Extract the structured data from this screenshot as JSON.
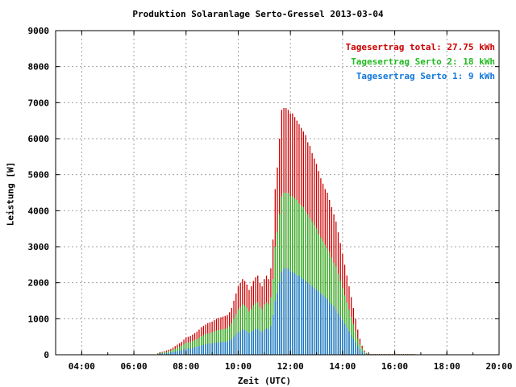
{
  "chart_data": {
    "type": "bar",
    "title": "Produktion Solaranlage Serto-Gressel 2013-03-04",
    "xlabel": "Zeit (UTC)",
    "ylabel": "Leistung [W]",
    "x_ticks": [
      "04:00",
      "06:00",
      "08:00",
      "10:00",
      "12:00",
      "14:00",
      "16:00",
      "18:00",
      "20:00"
    ],
    "y_ticks": [
      "0",
      "1000",
      "2000",
      "3000",
      "4000",
      "5000",
      "6000",
      "7000",
      "8000",
      "9000"
    ],
    "xlim": [
      "03:00",
      "20:00"
    ],
    "ylim": [
      0,
      9000
    ],
    "grid": true,
    "legend_position": "top-right",
    "stacked": true,
    "interval_minutes": 5,
    "series": [
      {
        "name": "Tagesertrag total: 27.75 kWh",
        "color": "#cc0000"
      },
      {
        "name": "Tagesertrag Serto 2: 18 kWh",
        "color": "#22bb22"
      },
      {
        "name": "Tagesertrag Serto 1: 9 kWh",
        "color": "#1177dd"
      }
    ],
    "x": [
      "06:55",
      "07:00",
      "07:05",
      "07:10",
      "07:15",
      "07:20",
      "07:25",
      "07:30",
      "07:35",
      "07:40",
      "07:45",
      "07:50",
      "07:55",
      "08:00",
      "08:05",
      "08:10",
      "08:15",
      "08:20",
      "08:25",
      "08:30",
      "08:35",
      "08:40",
      "08:45",
      "08:50",
      "08:55",
      "09:00",
      "09:05",
      "09:10",
      "09:15",
      "09:20",
      "09:25",
      "09:30",
      "09:35",
      "09:40",
      "09:45",
      "09:50",
      "09:55",
      "10:00",
      "10:05",
      "10:10",
      "10:15",
      "10:20",
      "10:25",
      "10:30",
      "10:35",
      "10:40",
      "10:45",
      "10:50",
      "10:55",
      "11:00",
      "11:05",
      "11:10",
      "11:15",
      "11:20",
      "11:25",
      "11:30",
      "11:35",
      "11:40",
      "11:45",
      "11:50",
      "11:55",
      "12:00",
      "12:05",
      "12:10",
      "12:15",
      "12:20",
      "12:25",
      "12:30",
      "12:35",
      "12:40",
      "12:45",
      "12:50",
      "12:55",
      "13:00",
      "13:05",
      "13:10",
      "13:15",
      "13:20",
      "13:25",
      "13:30",
      "13:35",
      "13:40",
      "13:45",
      "13:50",
      "13:55",
      "14:00",
      "14:05",
      "14:10",
      "14:15",
      "14:20",
      "14:25",
      "14:30",
      "14:35",
      "14:40",
      "14:45",
      "14:50",
      "14:55",
      "15:00",
      "15:05",
      "15:10",
      "15:15",
      "15:20",
      "15:25",
      "15:30",
      "15:35",
      "15:40",
      "15:45",
      "15:50",
      "15:55",
      "16:00",
      "16:05",
      "16:10",
      "16:15",
      "16:20",
      "16:25",
      "16:30",
      "16:35",
      "16:40",
      "16:45",
      "16:50",
      "16:55",
      "17:00"
    ],
    "total": [
      40,
      60,
      80,
      100,
      120,
      140,
      160,
      200,
      240,
      280,
      320,
      360,
      420,
      480,
      500,
      520,
      560,
      600,
      640,
      700,
      760,
      800,
      840,
      880,
      900,
      920,
      960,
      1000,
      1020,
      1040,
      1060,
      1080,
      1100,
      1180,
      1300,
      1500,
      1700,
      1900,
      2000,
      2100,
      2050,
      1950,
      1800,
      1900,
      2050,
      2150,
      2200,
      2000,
      1900,
      2100,
      2200,
      2100,
      2400,
      3200,
      4600,
      5200,
      6000,
      6800,
      6850,
      6850,
      6800,
      6700,
      6700,
      6600,
      6500,
      6400,
      6300,
      6200,
      6100,
      5900,
      5800,
      5600,
      5450,
      5300,
      5100,
      4900,
      4750,
      4600,
      4500,
      4300,
      4100,
      3900,
      3700,
      3400,
      3100,
      2800,
      2500,
      2200,
      1900,
      1600,
      1300,
      1000,
      700,
      450,
      250,
      120,
      50,
      20,
      20,
      20,
      20,
      20,
      20,
      20,
      20,
      20,
      20,
      20,
      20,
      20,
      20,
      20,
      20,
      20,
      20,
      20,
      20,
      20,
      20
    ],
    "serto2": [
      30,
      40,
      60,
      70,
      80,
      100,
      110,
      140,
      170,
      190,
      220,
      250,
      290,
      330,
      340,
      350,
      380,
      410,
      430,
      470,
      510,
      540,
      570,
      590,
      600,
      620,
      650,
      680,
      690,
      700,
      710,
      720,
      740,
      790,
      870,
      1000,
      1130,
      1260,
      1330,
      1400,
      1360,
      1300,
      1200,
      1260,
      1370,
      1430,
      1460,
      1330,
      1270,
      1400,
      1460,
      1400,
      1600,
      2100,
      3000,
      3400,
      3900,
      4400,
      4500,
      4500,
      4500,
      4400,
      4400,
      4350,
      4300,
      4200,
      4150,
      4100,
      4000,
      3900,
      3800,
      3700,
      3600,
      3500,
      3350,
      3250,
      3150,
      3050,
      2950,
      2850,
      2700,
      2550,
      2450,
      2250,
      2050,
      1850,
      1650,
      1450,
      1250,
      1050,
      860,
      660,
      460,
      300,
      170,
      80,
      35,
      15,
      15,
      15,
      15,
      15,
      15,
      15,
      15,
      15,
      15,
      15,
      15,
      15,
      15,
      15,
      15,
      15,
      15,
      15,
      15,
      15,
      15
    ],
    "serto1": [
      10,
      20,
      30,
      40,
      40,
      60,
      70,
      80,
      90,
      100,
      110,
      130,
      150,
      170,
      170,
      180,
      190,
      210,
      220,
      240,
      260,
      270,
      290,
      300,
      310,
      320,
      330,
      340,
      350,
      350,
      360,
      360,
      370,
      390,
      430,
      500,
      560,
      630,
      660,
      700,
      680,
      650,
      600,
      630,
      680,
      710,
      720,
      660,
      630,
      700,
      730,
      700,
      800,
      1100,
      1500,
      1700,
      2000,
      2300,
      2400,
      2400,
      2400,
      2300,
      2300,
      2250,
      2200,
      2200,
      2150,
      2100,
      2050,
      2000,
      1950,
      1900,
      1850,
      1800,
      1750,
      1700,
      1650,
      1600,
      1550,
      1450,
      1400,
      1350,
      1250,
      1150,
      1050,
      950,
      850,
      750,
      650,
      550,
      440,
      340,
      240,
      150,
      80,
      40,
      15,
      5,
      5,
      5,
      5,
      5,
      5,
      5,
      5,
      5,
      5,
      5,
      5,
      5,
      5,
      5,
      5,
      5,
      5,
      5,
      5,
      5,
      5
    ]
  }
}
